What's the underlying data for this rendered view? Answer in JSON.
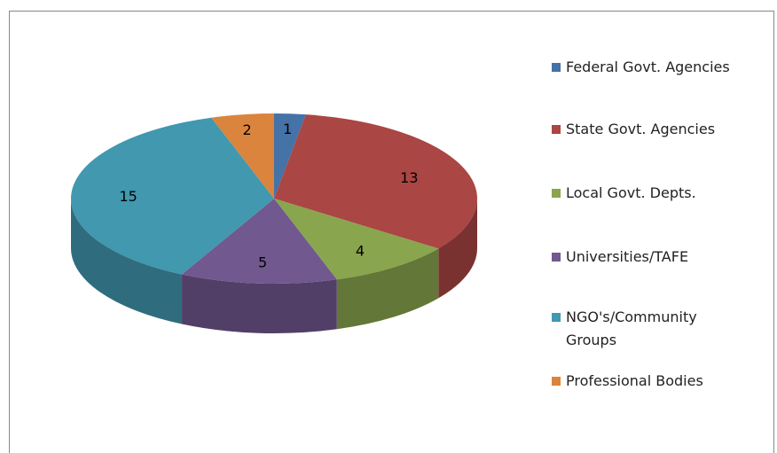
{
  "chart_data": {
    "type": "pie3d",
    "categories": [
      "Federal Govt. Agencies",
      "State Govt. Agencies",
      "Local Govt. Depts.",
      "Universities/TAFE",
      "NGO's/Community Groups",
      "Professional Bodies"
    ],
    "values": [
      1,
      13,
      4,
      5,
      15,
      2
    ],
    "colors": [
      "#4572a7",
      "#aa4643",
      "#89a54e",
      "#71588f",
      "#4198af",
      "#db843d"
    ],
    "legend": "right"
  }
}
